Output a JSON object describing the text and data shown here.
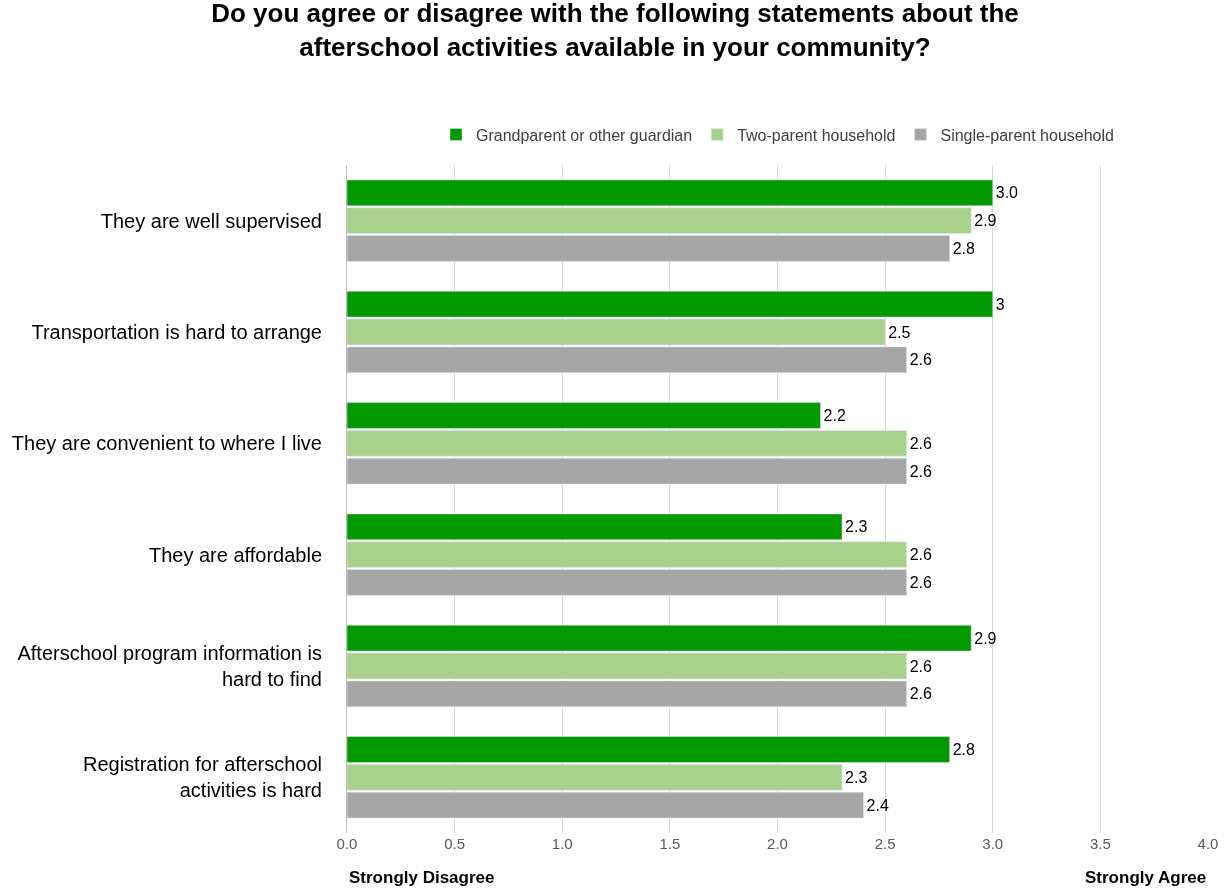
{
  "chart_data": {
    "type": "bar",
    "orientation": "horizontal",
    "title": "Do you agree or disagree with the following statements about the afterschool activities available in your community?",
    "categories": [
      "They are well supervised",
      "Transportation is hard to arrange",
      "They are convenient to where I live",
      "They are affordable",
      "Afterschool program information is hard to find",
      "Registration for afterschool activities is hard"
    ],
    "series": [
      {
        "name": "Grandparent or other guardian",
        "color": "#009900",
        "values": [
          3.0,
          3,
          2.2,
          2.3,
          2.9,
          2.8
        ],
        "value_labels": [
          "3.0",
          "3",
          "2.2",
          "2.3",
          "2.9",
          "2.8"
        ]
      },
      {
        "name": "Two-parent household",
        "color": "#a9d18e",
        "values": [
          2.9,
          2.5,
          2.6,
          2.6,
          2.6,
          2.3
        ],
        "value_labels": [
          "2.9",
          "2.5",
          "2.6",
          "2.6",
          "2.6",
          "2.3"
        ]
      },
      {
        "name": "Single-parent household",
        "color": "#a6a6a6",
        "values": [
          2.8,
          2.6,
          2.6,
          2.6,
          2.6,
          2.4
        ],
        "value_labels": [
          "2.8",
          "2.6",
          "2.6",
          "2.6",
          "2.6",
          "2.4"
        ]
      }
    ],
    "xlim": [
      0,
      4
    ],
    "xticks": [
      {
        "value": 0,
        "label": "0.0"
      },
      0.5,
      {
        "value": 1,
        "label": "1.0"
      },
      1.5,
      {
        "value": 2,
        "label": "2.0"
      },
      2.5,
      {
        "value": 3,
        "label": "3.0"
      },
      3.5,
      {
        "value": 4,
        "label": "4.0"
      }
    ],
    "grid": "x",
    "legend": "top",
    "annotations": [
      "Strongly Disagree",
      "Strongly Agree"
    ]
  }
}
